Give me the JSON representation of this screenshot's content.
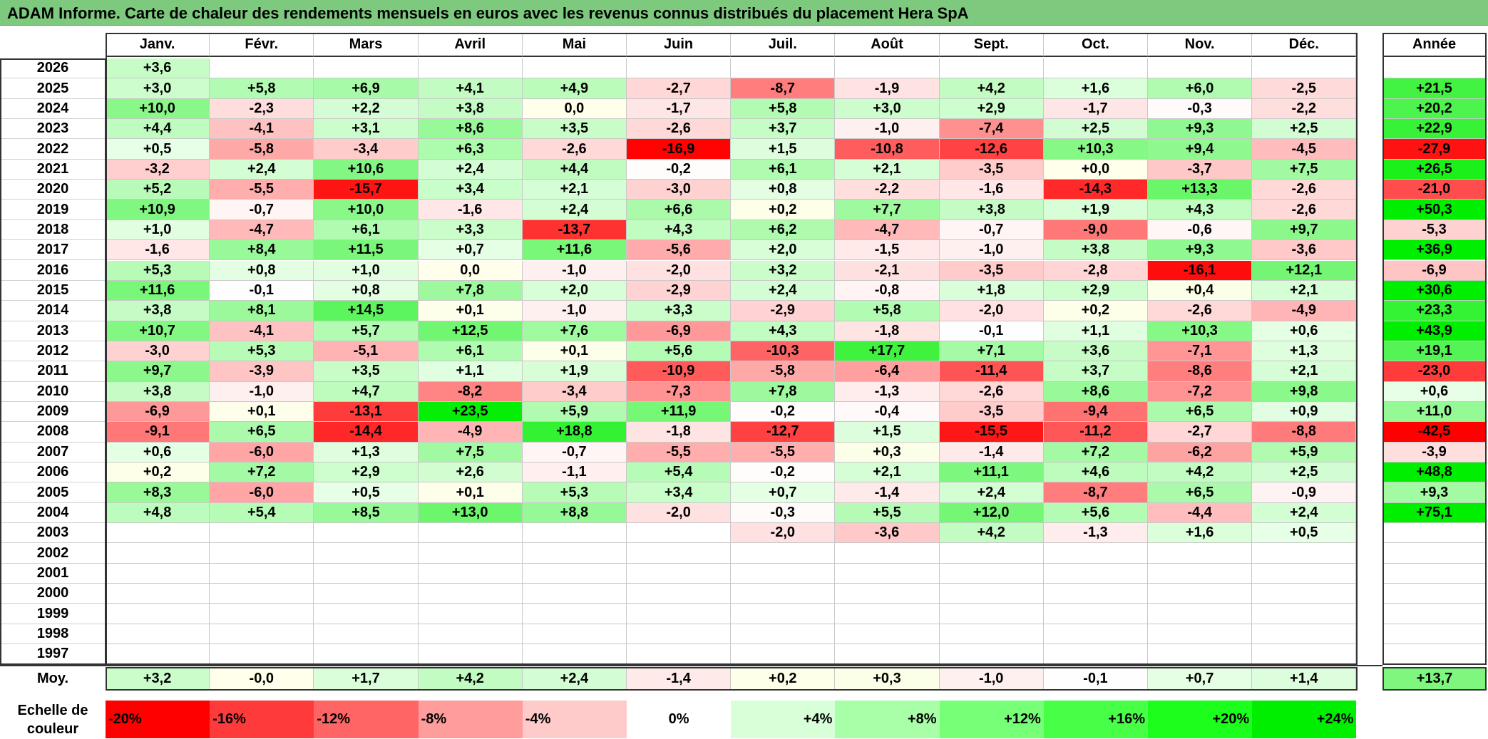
{
  "title": "ADAM Informe. Carte de chaleur des rendements mensuels en euros avec les revenus connus distribués du placement Hera SpA",
  "chart_data": {
    "type": "heatmap",
    "months": [
      "Janv.",
      "Févr.",
      "Mars",
      "Avril",
      "Mai",
      "Juin",
      "Juil.",
      "Août",
      "Sept.",
      "Oct.",
      "Nov.",
      "Déc."
    ],
    "year_header": "Année",
    "rows": [
      {
        "year": "2026",
        "values": [
          "+3,6",
          "",
          "",
          "",
          "",
          "",
          "",
          "",
          "",
          "",
          "",
          ""
        ],
        "annual": ""
      },
      {
        "year": "2025",
        "values": [
          "+3,0",
          "+5,8",
          "+6,9",
          "+4,1",
          "+4,9",
          "-2,7",
          "-8,7",
          "-1,9",
          "+4,2",
          "+1,6",
          "+6,0",
          "-2,5"
        ],
        "annual": "+21,5"
      },
      {
        "year": "2024",
        "values": [
          "+10,0",
          "-2,3",
          "+2,2",
          "+3,8",
          "0,0",
          "-1,7",
          "+5,8",
          "+3,0",
          "+2,9",
          "-1,7",
          "-0,3",
          "-2,2"
        ],
        "annual": "+20,2"
      },
      {
        "year": "2023",
        "values": [
          "+4,4",
          "-4,1",
          "+3,1",
          "+8,6",
          "+3,5",
          "-2,6",
          "+3,7",
          "-1,0",
          "-7,4",
          "+2,5",
          "+9,3",
          "+2,5"
        ],
        "annual": "+22,9"
      },
      {
        "year": "2022",
        "values": [
          "+0,5",
          "-5,8",
          "-3,4",
          "+6,3",
          "-2,6",
          "-16,9",
          "+1,5",
          "-10,8",
          "-12,6",
          "+10,3",
          "+9,4",
          "-4,5"
        ],
        "annual": "-27,9"
      },
      {
        "year": "2021",
        "values": [
          "-3,2",
          "+2,4",
          "+10,6",
          "+2,4",
          "+4,4",
          "-0,2",
          "+6,1",
          "+2,1",
          "-3,5",
          "+0,0",
          "-3,7",
          "+7,5"
        ],
        "annual": "+26,5"
      },
      {
        "year": "2020",
        "values": [
          "+5,2",
          "-5,5",
          "-15,7",
          "+3,4",
          "+2,1",
          "-3,0",
          "+0,8",
          "-2,2",
          "-1,6",
          "-14,3",
          "+13,3",
          "-2,6"
        ],
        "annual": "-21,0"
      },
      {
        "year": "2019",
        "values": [
          "+10,9",
          "-0,7",
          "+10,0",
          "-1,6",
          "+2,4",
          "+6,6",
          "+0,2",
          "+7,7",
          "+3,8",
          "+1,9",
          "+4,3",
          "-2,6"
        ],
        "annual": "+50,3"
      },
      {
        "year": "2018",
        "values": [
          "+1,0",
          "-4,7",
          "+6,1",
          "+3,3",
          "-13,7",
          "+4,3",
          "+6,2",
          "-4,7",
          "-0,7",
          "-9,0",
          "-0,6",
          "+9,7"
        ],
        "annual": "-5,3"
      },
      {
        "year": "2017",
        "values": [
          "-1,6",
          "+8,4",
          "+11,5",
          "+0,7",
          "+11,6",
          "-5,6",
          "+2,0",
          "-1,5",
          "-1,0",
          "+3,8",
          "+9,3",
          "-3,6"
        ],
        "annual": "+36,9"
      },
      {
        "year": "2016",
        "values": [
          "+5,3",
          "+0,8",
          "+1,0",
          "0,0",
          "-1,0",
          "-2,0",
          "+3,2",
          "-2,1",
          "-3,5",
          "-2,8",
          "-16,1",
          "+12,1"
        ],
        "annual": "-6,9"
      },
      {
        "year": "2015",
        "values": [
          "+11,6",
          "-0,1",
          "+0,8",
          "+7,8",
          "+2,0",
          "-2,9",
          "+2,4",
          "-0,8",
          "+1,8",
          "+2,9",
          "+0,4",
          "+2,1"
        ],
        "annual": "+30,6"
      },
      {
        "year": "2014",
        "values": [
          "+3,8",
          "+8,1",
          "+14,5",
          "+0,1",
          "-1,0",
          "+3,3",
          "-2,9",
          "+5,8",
          "-2,0",
          "+0,2",
          "-2,6",
          "-4,9"
        ],
        "annual": "+23,3"
      },
      {
        "year": "2013",
        "values": [
          "+10,7",
          "-4,1",
          "+5,7",
          "+12,5",
          "+7,6",
          "-6,9",
          "+4,3",
          "-1,8",
          "-0,1",
          "+1,1",
          "+10,3",
          "+0,6"
        ],
        "annual": "+43,9"
      },
      {
        "year": "2012",
        "values": [
          "-3,0",
          "+5,3",
          "-5,1",
          "+6,1",
          "+0,1",
          "+5,6",
          "-10,3",
          "+17,7",
          "+7,1",
          "+3,6",
          "-7,1",
          "+1,3"
        ],
        "annual": "+19,1"
      },
      {
        "year": "2011",
        "values": [
          "+9,7",
          "-3,9",
          "+3,5",
          "+1,1",
          "+1,9",
          "-10,9",
          "-5,8",
          "-6,4",
          "-11,4",
          "+3,7",
          "-8,6",
          "+2,1"
        ],
        "annual": "-23,0"
      },
      {
        "year": "2010",
        "values": [
          "+3,8",
          "-1,0",
          "+4,7",
          "-8,2",
          "-3,4",
          "-7,3",
          "+7,8",
          "-1,3",
          "-2,6",
          "+8,6",
          "-7,2",
          "+9,8"
        ],
        "annual": "+0,6"
      },
      {
        "year": "2009",
        "values": [
          "-6,9",
          "+0,1",
          "-13,1",
          "+23,5",
          "+5,9",
          "+11,9",
          "-0,2",
          "-0,4",
          "-3,5",
          "-9,4",
          "+6,5",
          "+0,9"
        ],
        "annual": "+11,0"
      },
      {
        "year": "2008",
        "values": [
          "-9,1",
          "+6,5",
          "-14,4",
          "-4,9",
          "+18,8",
          "-1,8",
          "-12,7",
          "+1,5",
          "-15,5",
          "-11,2",
          "-2,7",
          "-8,8"
        ],
        "annual": "-42,5"
      },
      {
        "year": "2007",
        "values": [
          "+0,6",
          "-6,0",
          "+1,3",
          "+7,5",
          "-0,7",
          "-5,5",
          "-5,5",
          "+0,3",
          "-1,4",
          "+7,2",
          "-6,2",
          "+5,9"
        ],
        "annual": "-3,9"
      },
      {
        "year": "2006",
        "values": [
          "+0,2",
          "+7,2",
          "+2,9",
          "+2,6",
          "-1,1",
          "+5,4",
          "-0,2",
          "+2,1",
          "+11,1",
          "+4,6",
          "+4,2",
          "+2,5"
        ],
        "annual": "+48,8"
      },
      {
        "year": "2005",
        "values": [
          "+8,3",
          "-6,0",
          "+0,5",
          "+0,1",
          "+5,3",
          "+3,4",
          "+0,7",
          "-1,4",
          "+2,4",
          "-8,7",
          "+6,5",
          "-0,9"
        ],
        "annual": "+9,3"
      },
      {
        "year": "2004",
        "values": [
          "+4,8",
          "+5,4",
          "+8,5",
          "+13,0",
          "+8,8",
          "-2,0",
          "-0,3",
          "+5,5",
          "+12,0",
          "+5,6",
          "-4,4",
          "+2,4"
        ],
        "annual": "+75,1"
      },
      {
        "year": "2003",
        "values": [
          "",
          "",
          "",
          "",
          "",
          "",
          "-2,0",
          "-3,6",
          "+4,2",
          "-1,3",
          "+1,6",
          "+0,5"
        ],
        "annual": ""
      },
      {
        "year": "2002",
        "values": [
          "",
          "",
          "",
          "",
          "",
          "",
          "",
          "",
          "",
          "",
          "",
          ""
        ],
        "annual": ""
      },
      {
        "year": "2001",
        "values": [
          "",
          "",
          "",
          "",
          "",
          "",
          "",
          "",
          "",
          "",
          "",
          ""
        ],
        "annual": ""
      },
      {
        "year": "2000",
        "values": [
          "",
          "",
          "",
          "",
          "",
          "",
          "",
          "",
          "",
          "",
          "",
          ""
        ],
        "annual": ""
      },
      {
        "year": "1999",
        "values": [
          "",
          "",
          "",
          "",
          "",
          "",
          "",
          "",
          "",
          "",
          "",
          ""
        ],
        "annual": ""
      },
      {
        "year": "1998",
        "values": [
          "",
          "",
          "",
          "",
          "",
          "",
          "",
          "",
          "",
          "",
          "",
          ""
        ],
        "annual": ""
      },
      {
        "year": "1997",
        "values": [
          "",
          "",
          "",
          "",
          "",
          "",
          "",
          "",
          "",
          "",
          "",
          ""
        ],
        "annual": ""
      }
    ],
    "average": {
      "label": "Moy.",
      "values": [
        "+3,2",
        "-0,0",
        "+1,7",
        "+4,2",
        "+2,4",
        "-1,4",
        "+0,2",
        "+0,3",
        "-1,0",
        "-0,1",
        "+0,7",
        "+1,4"
      ],
      "annual": "+13,7"
    },
    "scale": {
      "label_line1": "Echelle de",
      "label_line2": "couleur",
      "entries": [
        {
          "label": "-20%",
          "value": -20,
          "color": "#ff0000"
        },
        {
          "label": "-16%",
          "value": -16,
          "color": "#ff3a3a"
        },
        {
          "label": "-12%",
          "value": -12,
          "color": "#ff6565"
        },
        {
          "label": "-8%",
          "value": -8,
          "color": "#ff9c9c"
        },
        {
          "label": "-4%",
          "value": -4,
          "color": "#ffcaca"
        },
        {
          "label": "0%",
          "value": 0,
          "color": "#ffffff"
        },
        {
          "label": "+4%",
          "value": 4,
          "color": "#d8ffd8"
        },
        {
          "label": "+8%",
          "value": 8,
          "color": "#a8ffa8"
        },
        {
          "label": "+12%",
          "value": 12,
          "color": "#78ff78"
        },
        {
          "label": "+16%",
          "value": 16,
          "color": "#48ff48"
        },
        {
          "label": "+20%",
          "value": 20,
          "color": "#1cff1c"
        },
        {
          "label": "+24%",
          "value": 24,
          "color": "#00ee00"
        }
      ]
    },
    "colors": {
      "negative_max": "#ff0000",
      "neutral": "#ffffff",
      "positive_max": "#00ee00",
      "title_bar": "#7dca7e"
    }
  }
}
